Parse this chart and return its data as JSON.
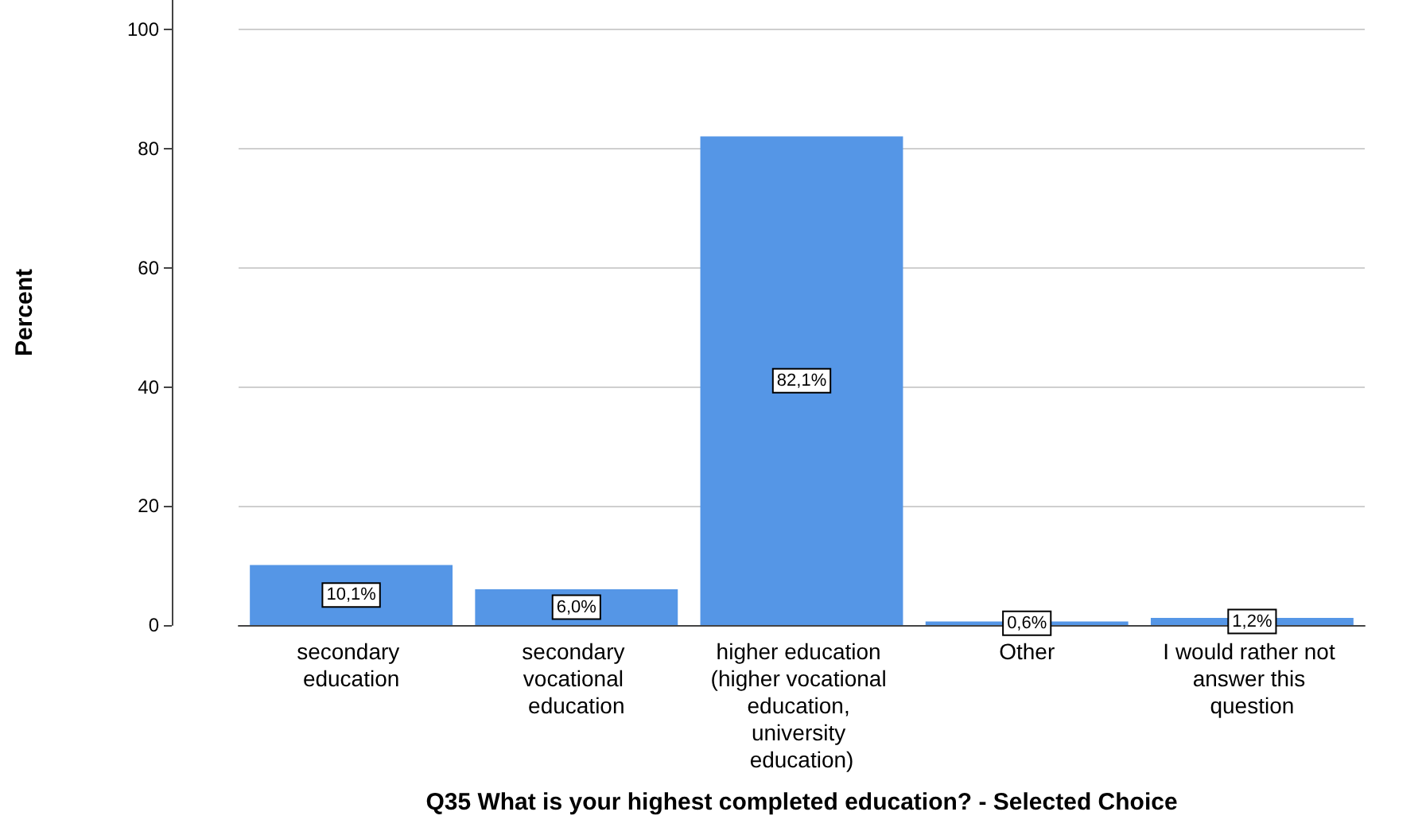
{
  "chart_data": {
    "type": "bar",
    "categories": [
      "secondary education",
      "secondary vocational education",
      "higher education (higher vocational education, university education)",
      "Other",
      "I would rather not answer this question"
    ],
    "values": [
      10.1,
      6.0,
      82.1,
      0.6,
      1.2
    ],
    "value_labels": [
      "10,1%",
      "6,0%",
      "82,1%",
      "0,6%",
      "1,2%"
    ],
    "color": "#5596e6",
    "xlabel": "Q35 What is your highest completed education? - Selected Choice",
    "ylabel": "Percent",
    "ylim": [
      0,
      105
    ],
    "yticks": [
      0,
      20,
      40,
      60,
      80,
      100
    ],
    "grid": "y"
  }
}
